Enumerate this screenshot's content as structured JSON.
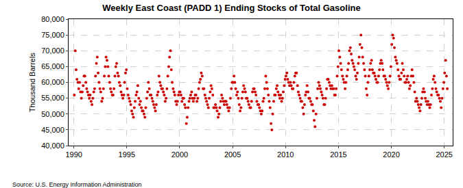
{
  "chart_data": {
    "type": "scatter",
    "title": "Weekly East Coast (PADD 1) Ending Stocks of Total Gasoline",
    "y_label": "Thousand Barrels",
    "source": "Source: U.S. Energy Information Administration",
    "color": "#cc0000",
    "marker": "circle",
    "grid": true,
    "xlim": [
      1989.5,
      2025.8
    ],
    "xticks": [
      1990,
      1995,
      2000,
      2005,
      2010,
      2015,
      2020,
      2025
    ],
    "ylim": [
      40000,
      80000
    ],
    "yticks": [
      {
        "value": 40000,
        "label": "40,000"
      },
      {
        "value": 45000,
        "label": "45,000"
      },
      {
        "value": 50000,
        "label": "50,000"
      },
      {
        "value": 55000,
        "label": "55,000"
      },
      {
        "value": 60000,
        "label": "60,000"
      },
      {
        "value": 65000,
        "label": "65,000"
      },
      {
        "value": 70000,
        "label": "70,000"
      },
      {
        "value": 75000,
        "label": "75,000"
      },
      {
        "value": 80000,
        "label": "80,000"
      }
    ],
    "x": [
      1990.04,
      1990.13,
      1990.21,
      1990.29,
      1990.38,
      1990.46,
      1990.54,
      1990.63,
      1990.71,
      1990.79,
      1990.88,
      1990.96,
      1991.04,
      1991.13,
      1991.21,
      1991.29,
      1991.38,
      1991.46,
      1991.54,
      1991.63,
      1991.71,
      1991.79,
      1991.88,
      1991.96,
      1992.04,
      1992.13,
      1992.21,
      1992.29,
      1992.38,
      1992.46,
      1992.54,
      1992.63,
      1992.71,
      1992.79,
      1992.88,
      1992.96,
      1993.04,
      1993.13,
      1993.21,
      1993.29,
      1993.38,
      1993.46,
      1993.54,
      1993.63,
      1993.71,
      1993.79,
      1993.88,
      1993.96,
      1994.04,
      1994.13,
      1994.21,
      1994.29,
      1994.38,
      1994.46,
      1994.54,
      1994.63,
      1994.71,
      1994.79,
      1994.88,
      1994.96,
      1995.04,
      1995.13,
      1995.21,
      1995.29,
      1995.38,
      1995.46,
      1995.54,
      1995.63,
      1995.71,
      1995.79,
      1995.88,
      1995.96,
      1996.04,
      1996.13,
      1996.21,
      1996.29,
      1996.38,
      1996.46,
      1996.54,
      1996.63,
      1996.71,
      1996.79,
      1996.88,
      1996.96,
      1997.04,
      1997.13,
      1997.21,
      1997.29,
      1997.38,
      1997.46,
      1997.54,
      1997.63,
      1997.71,
      1997.79,
      1997.88,
      1997.96,
      1998.04,
      1998.13,
      1998.21,
      1998.29,
      1998.38,
      1998.46,
      1998.54,
      1998.63,
      1998.71,
      1998.79,
      1998.88,
      1998.96,
      1999.04,
      1999.13,
      1999.21,
      1999.29,
      1999.38,
      1999.46,
      1999.54,
      1999.63,
      1999.71,
      1999.79,
      1999.88,
      1999.96,
      2000.04,
      2000.13,
      2000.21,
      2000.29,
      2000.38,
      2000.46,
      2000.54,
      2000.63,
      2000.71,
      2000.79,
      2000.88,
      2000.96,
      2001.04,
      2001.13,
      2001.21,
      2001.29,
      2001.38,
      2001.46,
      2001.54,
      2001.63,
      2001.71,
      2001.79,
      2001.88,
      2001.96,
      2002.04,
      2002.13,
      2002.21,
      2002.29,
      2002.38,
      2002.46,
      2002.54,
      2002.63,
      2002.71,
      2002.79,
      2002.88,
      2002.96,
      2003.04,
      2003.13,
      2003.21,
      2003.29,
      2003.38,
      2003.46,
      2003.54,
      2003.63,
      2003.71,
      2003.79,
      2003.88,
      2003.96,
      2004.04,
      2004.13,
      2004.21,
      2004.29,
      2004.38,
      2004.46,
      2004.54,
      2004.63,
      2004.71,
      2004.79,
      2004.88,
      2004.96,
      2005.04,
      2005.13,
      2005.21,
      2005.29,
      2005.38,
      2005.46,
      2005.54,
      2005.63,
      2005.71,
      2005.79,
      2005.88,
      2005.96,
      2006.04,
      2006.13,
      2006.21,
      2006.29,
      2006.38,
      2006.46,
      2006.54,
      2006.63,
      2006.71,
      2006.79,
      2006.88,
      2006.96,
      2007.04,
      2007.13,
      2007.21,
      2007.29,
      2007.38,
      2007.46,
      2007.54,
      2007.63,
      2007.71,
      2007.79,
      2007.88,
      2007.96,
      2008.04,
      2008.13,
      2008.21,
      2008.29,
      2008.38,
      2008.46,
      2008.54,
      2008.63,
      2008.71,
      2008.79,
      2008.88,
      2008.96,
      2009.04,
      2009.13,
      2009.21,
      2009.29,
      2009.38,
      2009.46,
      2009.54,
      2009.63,
      2009.71,
      2009.79,
      2009.88,
      2009.96,
      2010.04,
      2010.13,
      2010.21,
      2010.29,
      2010.38,
      2010.46,
      2010.54,
      2010.63,
      2010.71,
      2010.79,
      2010.88,
      2010.96,
      2011.04,
      2011.13,
      2011.21,
      2011.29,
      2011.38,
      2011.46,
      2011.54,
      2011.63,
      2011.71,
      2011.79,
      2011.88,
      2011.96,
      2012.04,
      2012.13,
      2012.21,
      2012.29,
      2012.38,
      2012.46,
      2012.54,
      2012.63,
      2012.71,
      2012.79,
      2012.88,
      2012.96,
      2013.04,
      2013.13,
      2013.21,
      2013.29,
      2013.38,
      2013.46,
      2013.54,
      2013.63,
      2013.71,
      2013.79,
      2013.88,
      2013.96,
      2014.04,
      2014.13,
      2014.21,
      2014.29,
      2014.38,
      2014.46,
      2014.54,
      2014.63,
      2014.71,
      2014.79,
      2014.88,
      2014.96,
      2015.04,
      2015.13,
      2015.21,
      2015.29,
      2015.38,
      2015.46,
      2015.54,
      2015.63,
      2015.71,
      2015.79,
      2015.88,
      2015.96,
      2016.04,
      2016.13,
      2016.21,
      2016.29,
      2016.38,
      2016.46,
      2016.54,
      2016.63,
      2016.71,
      2016.79,
      2016.88,
      2016.96,
      2017.04,
      2017.13,
      2017.21,
      2017.29,
      2017.38,
      2017.46,
      2017.54,
      2017.63,
      2017.71,
      2017.79,
      2017.88,
      2017.96,
      2018.04,
      2018.13,
      2018.21,
      2018.29,
      2018.38,
      2018.46,
      2018.54,
      2018.63,
      2018.71,
      2018.79,
      2018.88,
      2018.96,
      2019.04,
      2019.13,
      2019.21,
      2019.29,
      2019.38,
      2019.46,
      2019.54,
      2019.63,
      2019.71,
      2019.79,
      2019.88,
      2019.96,
      2020.04,
      2020.13,
      2020.21,
      2020.29,
      2020.38,
      2020.46,
      2020.54,
      2020.63,
      2020.71,
      2020.79,
      2020.88,
      2020.96,
      2021.04,
      2021.13,
      2021.21,
      2021.29,
      2021.38,
      2021.46,
      2021.54,
      2021.63,
      2021.71,
      2021.79,
      2021.88,
      2021.96,
      2022.04,
      2022.13,
      2022.21,
      2022.29,
      2022.38,
      2022.46,
      2022.54,
      2022.63,
      2022.71,
      2022.79,
      2022.88,
      2022.96,
      2023.04,
      2023.13,
      2023.21,
      2023.29,
      2023.38,
      2023.46,
      2023.54,
      2023.63,
      2023.71,
      2023.79,
      2023.88,
      2023.96,
      2024.04,
      2024.13,
      2024.21,
      2024.29,
      2024.38,
      2024.46,
      2024.54,
      2024.63,
      2024.71,
      2024.79,
      2024.88,
      2024.96,
      2025.04,
      2025.13,
      2025.21,
      2025.29
    ],
    "values": [
      56000,
      70000,
      64000,
      61000,
      60000,
      58000,
      60000,
      57000,
      55000,
      57000,
      59000,
      62000,
      62000,
      60000,
      58000,
      57000,
      56000,
      55000,
      56000,
      54000,
      53000,
      55000,
      57000,
      58000,
      62000,
      66000,
      68000,
      63000,
      60000,
      58000,
      57000,
      54000,
      55000,
      58000,
      62000,
      65000,
      68000,
      67000,
      65000,
      62000,
      60000,
      58000,
      57000,
      56000,
      56000,
      58000,
      62000,
      65000,
      66000,
      63000,
      62000,
      60000,
      59000,
      57000,
      56000,
      55000,
      56000,
      60000,
      63000,
      64000,
      58000,
      56000,
      55000,
      54000,
      53000,
      51000,
      50000,
      49000,
      52000,
      54000,
      56000,
      57000,
      59000,
      55000,
      53000,
      54000,
      52000,
      51000,
      51000,
      50000,
      49000,
      52000,
      55000,
      57000,
      60000,
      58000,
      56000,
      56000,
      55000,
      54000,
      53000,
      52000,
      51000,
      53000,
      56000,
      57000,
      62000,
      60000,
      59000,
      58000,
      58000,
      57000,
      56000,
      54000,
      55000,
      58000,
      62000,
      65000,
      68000,
      70000,
      64000,
      60000,
      58000,
      57000,
      56000,
      54000,
      53000,
      54000,
      56000,
      57000,
      57000,
      56000,
      54000,
      55000,
      55000,
      53000,
      52000,
      47000,
      49000,
      52000,
      54000,
      55000,
      56000,
      57000,
      55000,
      54000,
      55000,
      56000,
      56000,
      54000,
      55000,
      58000,
      60000,
      61000,
      63000,
      62000,
      58000,
      58000,
      56000,
      55000,
      54000,
      53000,
      52000,
      55000,
      57000,
      59000,
      58000,
      56000,
      52000,
      52000,
      53000,
      52000,
      51000,
      49000,
      50000,
      52000,
      54000,
      56000,
      55000,
      54000,
      53000,
      54000,
      54000,
      53000,
      52000,
      51000,
      52000,
      55000,
      58000,
      60000,
      60000,
      62000,
      60000,
      58000,
      56000,
      57000,
      55000,
      53000,
      51000,
      52000,
      55000,
      57000,
      59000,
      58000,
      57000,
      55000,
      55000,
      54000,
      53000,
      52000,
      52000,
      54000,
      57000,
      58000,
      58000,
      57000,
      56000,
      54000,
      53000,
      53000,
      52000,
      51000,
      50000,
      51000,
      54000,
      55000,
      58000,
      62000,
      60000,
      58000,
      56000,
      54000,
      52000,
      47000,
      45000,
      50000,
      54000,
      56000,
      56000,
      58000,
      59000,
      57000,
      56000,
      55000,
      56000,
      54000,
      55000,
      57000,
      59000,
      61000,
      62000,
      63000,
      61000,
      60000,
      59000,
      60000,
      59000,
      58000,
      58000,
      60000,
      62000,
      63000,
      63000,
      59000,
      57000,
      56000,
      55000,
      54000,
      54000,
      52000,
      50000,
      53000,
      56000,
      57000,
      59000,
      57000,
      55000,
      55000,
      54000,
      53000,
      53000,
      51000,
      48000,
      46000,
      50000,
      55000,
      58000,
      60000,
      59000,
      58000,
      57000,
      56000,
      55000,
      53000,
      53000,
      55000,
      58000,
      61000,
      61000,
      60000,
      59000,
      58000,
      59000,
      58000,
      58000,
      56000,
      56000,
      58000,
      62000,
      65000,
      70000,
      68000,
      66000,
      64000,
      62000,
      61000,
      60000,
      58000,
      60000,
      62000,
      64000,
      66000,
      70000,
      71000,
      69000,
      67000,
      66000,
      65000,
      64000,
      62000,
      61000,
      63000,
      66000,
      68000,
      72000,
      75000,
      71000,
      68000,
      66000,
      64000,
      62000,
      58000,
      56000,
      60000,
      62000,
      64000,
      66000,
      67000,
      64000,
      63000,
      63000,
      62000,
      61000,
      60000,
      60000,
      62000,
      64000,
      66000,
      67000,
      66000,
      64000,
      62000,
      62000,
      61000,
      60000,
      59000,
      58000,
      60000,
      62000,
      65000,
      72000,
      75000,
      74000,
      71000,
      68000,
      67000,
      66000,
      64000,
      62000,
      61000,
      61000,
      63000,
      66000,
      64000,
      62000,
      60000,
      60000,
      61000,
      62000,
      60000,
      58000,
      59000,
      62000,
      64000,
      62000,
      60000,
      57000,
      54000,
      55000,
      54000,
      53000,
      52000,
      51000,
      53000,
      55000,
      57000,
      58000,
      57000,
      55000,
      54000,
      53000,
      54000,
      53000,
      52000,
      53000,
      56000,
      58000,
      61000,
      62000,
      60000,
      58000,
      57000,
      56000,
      56000,
      55000,
      54000,
      52000,
      55000,
      58000,
      60000,
      63000,
      67000,
      62000,
      58000
    ]
  }
}
